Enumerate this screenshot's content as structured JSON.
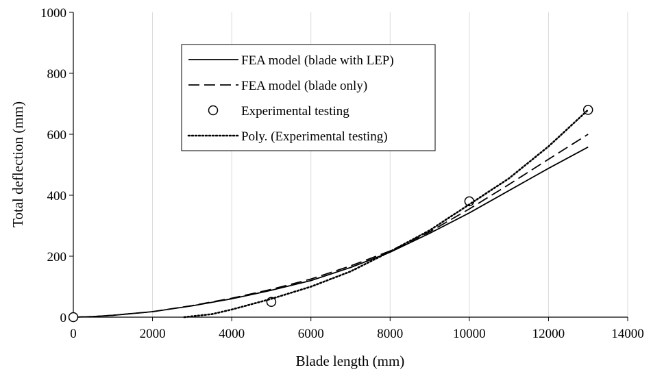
{
  "chart_data": {
    "type": "line",
    "xlabel": "Blade length (mm)",
    "ylabel": "Total deflection (mm)",
    "xlim": [
      0,
      14000
    ],
    "ylim": [
      0,
      1000
    ],
    "x_ticks": [
      "0",
      "2000",
      "4000",
      "6000",
      "8000",
      "10000",
      "12000",
      "14000"
    ],
    "y_ticks": [
      "0",
      "200",
      "400",
      "600",
      "800",
      "1000"
    ],
    "grid": "vertical gridlines only",
    "legend_position": "top-left inside plot",
    "series": [
      {
        "name": "FEA model (blade with LEP)",
        "style": "solid",
        "color": "#000000",
        "x": [
          0,
          500,
          1000,
          2000,
          3000,
          4000,
          5000,
          6000,
          7000,
          8000,
          9000,
          10000,
          11000,
          12000,
          13000
        ],
        "y": [
          0,
          2,
          6,
          18,
          37,
          60,
          88,
          120,
          163,
          213,
          275,
          342,
          415,
          488,
          558
        ]
      },
      {
        "name": "FEA model (blade only)",
        "style": "dashed",
        "color": "#000000",
        "x": [
          0,
          500,
          1000,
          2000,
          3000,
          4000,
          5000,
          6000,
          7000,
          8000,
          9000,
          10000,
          11000,
          12000,
          13000
        ],
        "y": [
          0,
          2,
          6,
          18,
          38,
          62,
          91,
          125,
          168,
          217,
          280,
          355,
          435,
          518,
          600
        ]
      },
      {
        "name": "Experimental testing",
        "style": "markers",
        "marker": "open-circle",
        "color": "#000000",
        "x": [
          0,
          5000,
          10000,
          13000
        ],
        "y": [
          0,
          50,
          380,
          680
        ]
      },
      {
        "name": "Poly. (Experimental testing)",
        "style": "dotted",
        "color": "#000000",
        "x": [
          2800,
          3500,
          4000,
          5000,
          6000,
          7000,
          8000,
          9000,
          10000,
          11000,
          12000,
          13000
        ],
        "y": [
          0,
          10,
          25,
          60,
          100,
          150,
          215,
          285,
          370,
          455,
          560,
          680
        ]
      }
    ]
  }
}
